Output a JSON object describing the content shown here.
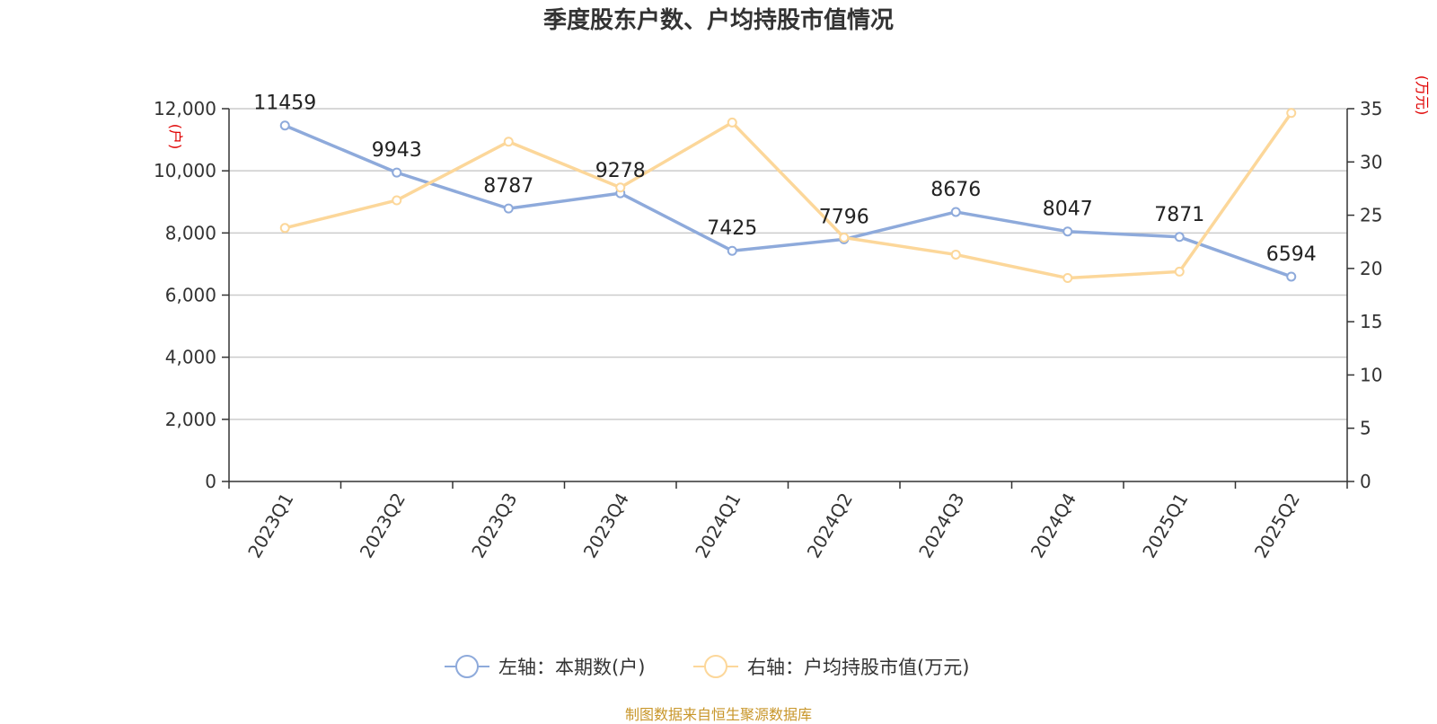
{
  "chart_data": {
    "type": "line",
    "title": "季度股东户数、户均持股市值情况",
    "categories": [
      "2023Q1",
      "2023Q2",
      "2023Q3",
      "2023Q4",
      "2024Q1",
      "2024Q2",
      "2024Q3",
      "2024Q4",
      "2025Q1",
      "2025Q2"
    ],
    "series": [
      {
        "name": "左轴：本期数(户)",
        "axis": "left",
        "color": "#8eaadb",
        "values": [
          11459,
          9943,
          8787,
          9278,
          7425,
          7796,
          8676,
          8047,
          7871,
          6594
        ],
        "labels": [
          "11459",
          "9943",
          "8787",
          "9278",
          "7425",
          "7796",
          "8676",
          "8047",
          "7871",
          "6594"
        ]
      },
      {
        "name": "右轴：户均持股市值(万元)",
        "axis": "right",
        "color": "#fcd79a",
        "values": [
          23.8,
          26.4,
          31.9,
          27.6,
          33.7,
          22.9,
          21.3,
          19.1,
          19.7,
          34.6
        ]
      }
    ],
    "y_left": {
      "unit": "(户)",
      "range": [
        0,
        12000
      ],
      "ticks": [
        0,
        2000,
        4000,
        6000,
        8000,
        10000,
        12000
      ],
      "tick_labels": [
        "0",
        "2,000",
        "4,000",
        "6,000",
        "8,000",
        "10,000",
        "12,000"
      ]
    },
    "y_right": {
      "unit": "(万元)",
      "range": [
        0,
        35
      ],
      "ticks": [
        0,
        5,
        10,
        15,
        20,
        25,
        30,
        35
      ],
      "tick_labels": [
        "0",
        "5",
        "10",
        "15",
        "20",
        "25",
        "30",
        "35"
      ]
    },
    "grid": true,
    "legend_position": "bottom-center"
  },
  "source": "制图数据来自恒生聚源数据库"
}
